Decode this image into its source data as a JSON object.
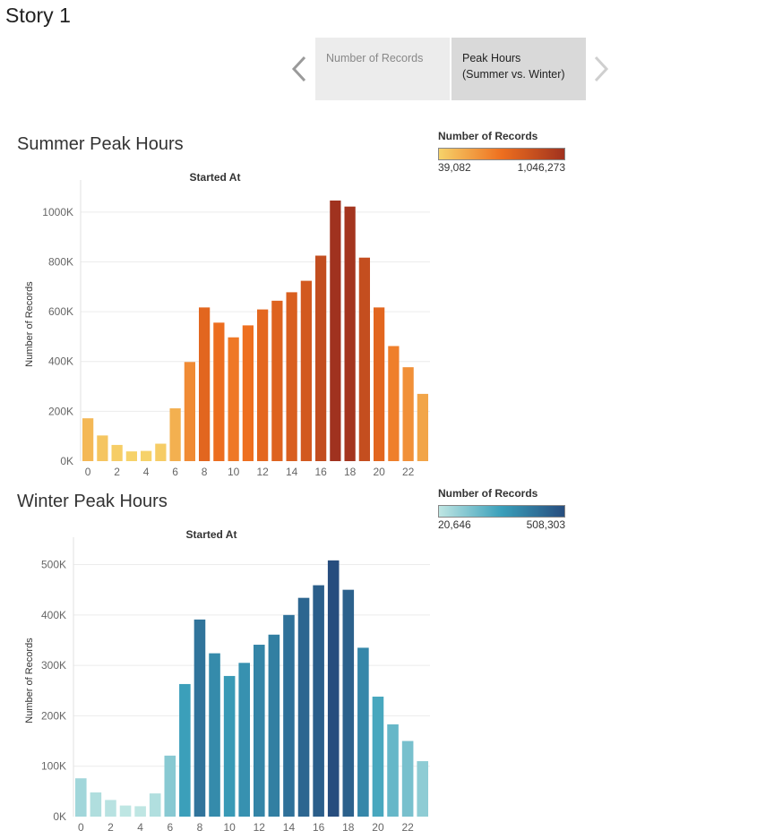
{
  "story": {
    "title": "Story 1",
    "tabs": [
      {
        "label": "Number of Records",
        "active": false
      },
      {
        "label": "Peak Hours\n(Summer vs. Winter)",
        "active": true
      }
    ],
    "prev_icon": "chevron-left-icon",
    "next_icon": "chevron-right-icon"
  },
  "legends": [
    {
      "title": "Number of Records",
      "min_label": "39,082",
      "max_label": "1,046,273",
      "colors": [
        "#f6d26a",
        "#ee6f1f",
        "#a0321f"
      ]
    },
    {
      "title": "Number of Records",
      "min_label": "20,646",
      "max_label": "508,303",
      "colors": [
        "#bfe6e3",
        "#3a9fba",
        "#274d7e"
      ]
    }
  ],
  "chart_data": [
    {
      "type": "bar",
      "title": "Summer Peak Hours",
      "header": "Started At",
      "ylabel": "Number of Records",
      "x": [
        0,
        1,
        2,
        3,
        4,
        5,
        6,
        7,
        8,
        9,
        10,
        11,
        12,
        13,
        14,
        15,
        16,
        17,
        18,
        19,
        20,
        21,
        22,
        23
      ],
      "x_tick_labels": [
        "0",
        "2",
        "4",
        "6",
        "8",
        "10",
        "12",
        "14",
        "16",
        "18",
        "20",
        "22"
      ],
      "values": [
        172000,
        103000,
        65000,
        39082,
        41000,
        70000,
        212000,
        398000,
        617000,
        556000,
        497000,
        545000,
        609000,
        644000,
        678000,
        724000,
        825000,
        1046273,
        1022000,
        817000,
        617000,
        462000,
        377000,
        270000
      ],
      "ylim": [
        0,
        1100000
      ],
      "y_ticks": [
        0,
        200000,
        400000,
        600000,
        800000,
        1000000
      ],
      "y_tick_labels": [
        "0K",
        "200K",
        "400K",
        "600K",
        "800K",
        "1000K"
      ],
      "color_range": [
        39082,
        1046273
      ],
      "colors": [
        "#f6d26a",
        "#ee6f1f",
        "#a0321f"
      ],
      "grid": true
    },
    {
      "type": "bar",
      "title": "Winter Peak Hours",
      "header": "Started At",
      "ylabel": "Number of Records",
      "x": [
        0,
        1,
        2,
        3,
        4,
        5,
        6,
        7,
        8,
        9,
        10,
        11,
        12,
        13,
        14,
        15,
        16,
        17,
        18,
        19,
        20,
        21,
        22,
        23
      ],
      "x_tick_labels": [
        "0",
        "2",
        "4",
        "6",
        "8",
        "10",
        "12",
        "14",
        "16",
        "18",
        "20",
        "22"
      ],
      "values": [
        76000,
        48000,
        33000,
        22000,
        20646,
        46000,
        121000,
        263000,
        391000,
        324000,
        279000,
        305000,
        341000,
        361000,
        400000,
        434000,
        459000,
        508303,
        450000,
        335000,
        238000,
        183000,
        150000,
        110000
      ],
      "ylim": [
        0,
        540000
      ],
      "y_ticks": [
        0,
        100000,
        200000,
        300000,
        400000,
        500000
      ],
      "y_tick_labels": [
        "0K",
        "100K",
        "200K",
        "300K",
        "400K",
        "500K"
      ],
      "color_range": [
        20646,
        508303
      ],
      "colors": [
        "#bfe6e3",
        "#3a9fba",
        "#274d7e"
      ],
      "grid": true
    }
  ]
}
